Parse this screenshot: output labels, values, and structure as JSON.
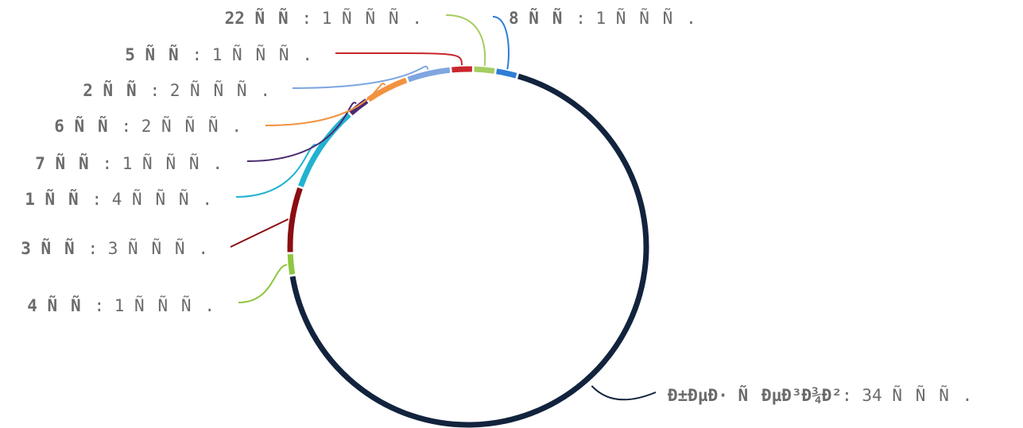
{
  "chart_data": {
    "type": "pie",
    "style": "donut-ring",
    "unit": "ÑÑÑ.",
    "slices": [
      {
        "key": "Ð±ÐµÐ· ÑÐµÐ³Ð¾Ð²",
        "value": 34,
        "label": "Ð±ÐµÐ· ÑÐµÐ³Ð¾Ð²",
        "value_text": "34 ÑÑÑ.",
        "color": "#12233d"
      },
      {
        "key": "4 ÑÑ",
        "value": 1,
        "label": "4 ÑÑ",
        "value_text": "1 ÑÑÑ.",
        "color": "#8dc63f"
      },
      {
        "key": "3 ÑÑ",
        "value": 3,
        "label": "3 ÑÑ",
        "value_text": "3 ÑÑÑ.",
        "color": "#8b0d12"
      },
      {
        "key": "1 ÑÑ",
        "value": 4,
        "label": "1 ÑÑ",
        "value_text": "4 ÑÑÑ.",
        "color": "#22b2d1"
      },
      {
        "key": "7 ÑÑ",
        "value": 1,
        "label": "7 ÑÑ",
        "value_text": "1 ÑÑÑ.",
        "color": "#4b2a72"
      },
      {
        "key": "6 ÑÑ",
        "value": 2,
        "label": "6 ÑÑ",
        "value_text": "2 ÑÑÑ.",
        "color": "#f2923f"
      },
      {
        "key": "2 ÑÑ",
        "value": 2,
        "label": "2 ÑÑ",
        "value_text": "2 ÑÑÑ.",
        "color": "#7ea6e0"
      },
      {
        "key": "5 ÑÑ",
        "value": 1,
        "label": "5 ÑÑ",
        "value_text": "1 ÑÑÑ.",
        "color": "#c9262c"
      },
      {
        "key": "22 ÑÑ",
        "value": 1,
        "label": "22 ÑÑ",
        "value_text": "1 ÑÑÑ.",
        "color": "#a5cd62"
      },
      {
        "key": "8 ÑÑ",
        "value": 1,
        "label": "8 ÑÑ",
        "value_text": "1 ÑÑÑ.",
        "color": "#2f7dd6"
      }
    ],
    "legend": "none",
    "grid": false
  }
}
